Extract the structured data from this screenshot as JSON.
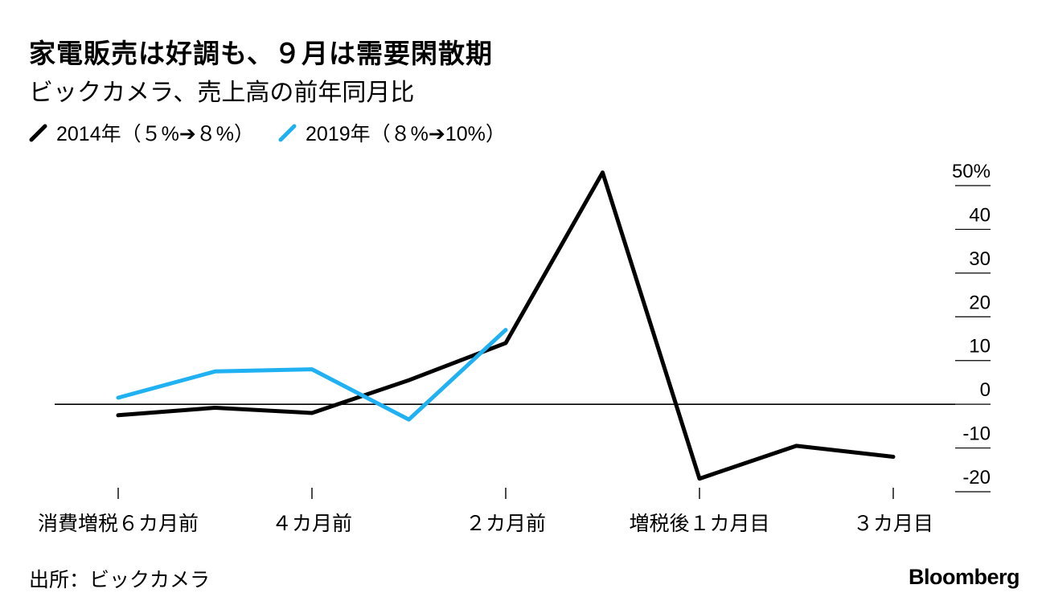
{
  "title": "家電販売は好調も、９月は需要閑散期",
  "subtitle": "ビックカメラ、売上高の前年同月比",
  "source": "出所：ビックカメラ",
  "brand": "Bloomberg",
  "chart_data": {
    "type": "line",
    "title": "家電販売は好調も、９月は需要閑散期",
    "subtitle": "ビックカメラ、売上高の前年同月比",
    "ylabel": "",
    "xlabel": "",
    "ylim": [
      -20,
      50
    ],
    "y_ticks": [
      "50%",
      "40",
      "30",
      "20",
      "10",
      "0",
      "-10",
      "-20"
    ],
    "y_tick_values": [
      50,
      40,
      30,
      20,
      10,
      0,
      -10,
      -20
    ],
    "y_axis_position": "right",
    "x": [
      -6,
      -5,
      -4,
      -3,
      -2,
      -1,
      1,
      2,
      3
    ],
    "x_ticks": [
      {
        "x": -6,
        "label": "消費増税６カ月前"
      },
      {
        "x": -4,
        "label": "４カ月前"
      },
      {
        "x": -2,
        "label": "２カ月前"
      },
      {
        "x": 1,
        "label": "増税後１カ月目"
      },
      {
        "x": 3,
        "label": "３カ月目"
      }
    ],
    "series": [
      {
        "name": "2014年（５%➔８%）",
        "color": "#000000",
        "x": [
          -6,
          -5,
          -4,
          -3,
          -2,
          -1,
          1,
          2,
          3
        ],
        "values": [
          -2.5,
          -0.8,
          -2,
          5.5,
          14,
          53,
          -17,
          -9.5,
          -12
        ]
      },
      {
        "name": "2019年（８%➔10%）",
        "color": "#1fb1f2",
        "x": [
          -6,
          -5,
          -4,
          -3,
          -2
        ],
        "values": [
          1.5,
          7.5,
          8,
          -3.5,
          17
        ]
      }
    ],
    "zero_line": true,
    "legend_position": "top-left"
  }
}
